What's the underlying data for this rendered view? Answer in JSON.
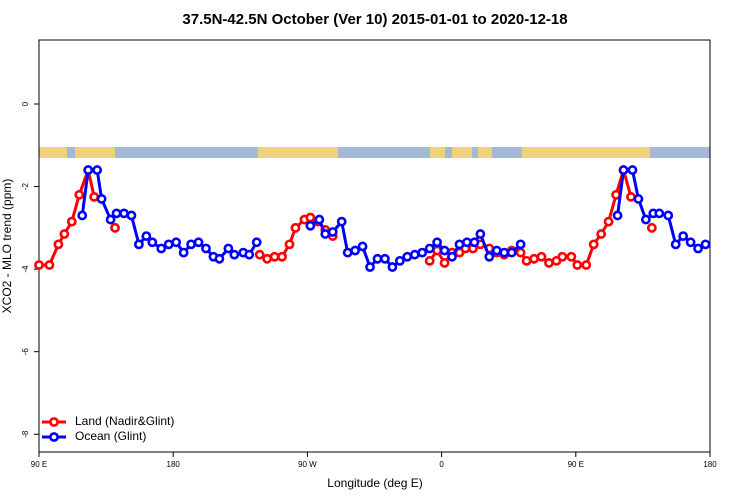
{
  "chart_data": {
    "type": "line",
    "title": "37.5N-42.5N October (Ver 10)   2015-01-01 to 2020-12-18",
    "x_label": "Longitude (deg E)",
    "y_label": "XCO2 - MLO trend (ppm)",
    "xlim": [
      90,
      540
    ],
    "xticks": [
      {
        "value": 90,
        "label": "90 E"
      },
      180,
      {
        "value": 270,
        "label": "90 W"
      },
      {
        "value": 360,
        "label": "0"
      },
      {
        "value": 450,
        "label": "90 E"
      },
      180.0
    ],
    "ylim": [
      -8.43,
      1.55
    ],
    "yticks": [
      0,
      -2,
      -4,
      -6,
      -8
    ],
    "legend": "bottom-left",
    "series": [
      {
        "name": "Land (Nadir&Glint)",
        "color": "#ff0000",
        "x": [
          90,
          97,
          103,
          107,
          112,
          117,
          123,
          127,
          132,
          141,
          190,
          238,
          243,
          248,
          253,
          258,
          262,
          268,
          272,
          277,
          282,
          287,
          300,
          352,
          357,
          362,
          367,
          372,
          376,
          381,
          386,
          392,
          397,
          402,
          407,
          413,
          417,
          422,
          427,
          432,
          437,
          441,
          447,
          451,
          457,
          462,
          467,
          472,
          477,
          482,
          487,
          492,
          501
        ],
        "values": [
          -3.9,
          -3.9,
          -3.4,
          -3.15,
          -2.85,
          -2.2,
          -1.6,
          -2.25,
          null,
          -3.0,
          null,
          -3.65,
          -3.75,
          -3.7,
          -3.7,
          -3.4,
          -3.0,
          -2.8,
          -2.75,
          -2.85,
          -3.05,
          -3.2,
          null,
          -3.8,
          -3.55,
          -3.85,
          -3.6,
          -3.6,
          -3.5,
          -3.5,
          -3.4,
          -3.5,
          -3.6,
          -3.65,
          -3.55,
          -3.6,
          -3.8,
          -3.75,
          -3.7,
          -3.85,
          -3.8,
          -3.7,
          -3.7,
          -3.9,
          -3.9,
          -3.4,
          -3.15,
          -2.85,
          -2.2,
          -1.6,
          -2.25,
          null,
          -3.0
        ]
      },
      {
        "name": "Ocean (Glint)",
        "color": "#0000ff",
        "x": [
          119,
          123,
          129,
          132,
          138,
          142,
          147,
          152,
          157,
          162,
          166,
          172,
          177,
          182,
          187,
          192,
          197,
          202,
          207,
          211,
          217,
          221,
          227,
          231,
          236,
          250,
          272,
          278,
          282,
          287,
          293,
          297,
          302,
          307,
          312,
          317,
          322,
          327,
          332,
          337,
          342,
          347,
          352,
          357,
          362,
          367,
          372,
          377,
          382,
          386,
          392,
          397,
          402,
          407,
          413,
          450,
          478,
          482,
          488,
          492,
          497,
          502,
          506,
          512,
          517,
          522,
          527,
          532,
          537
        ],
        "values": [
          -2.7,
          -1.6,
          -1.6,
          -2.3,
          -2.8,
          -2.65,
          -2.65,
          -2.7,
          -3.4,
          -3.2,
          -3.35,
          -3.5,
          -3.4,
          -3.35,
          -3.6,
          -3.4,
          -3.35,
          -3.5,
          -3.7,
          -3.75,
          -3.5,
          -3.65,
          -3.6,
          -3.65,
          -3.35,
          null,
          -2.95,
          -2.8,
          -3.15,
          -3.1,
          -2.85,
          -3.6,
          -3.55,
          -3.45,
          -3.95,
          -3.75,
          -3.75,
          -3.95,
          -3.8,
          -3.7,
          -3.65,
          -3.6,
          -3.5,
          -3.35,
          -3.55,
          -3.7,
          -3.4,
          -3.35,
          -3.35,
          -3.15,
          -3.7,
          -3.55,
          -3.6,
          -3.6,
          -3.4,
          null,
          -2.7,
          -1.6,
          -1.6,
          -2.3,
          -2.8,
          -2.65,
          -2.65,
          -2.7,
          -3.4,
          -3.2,
          -3.35,
          -3.5,
          -3.4
        ]
      }
    ]
  }
}
